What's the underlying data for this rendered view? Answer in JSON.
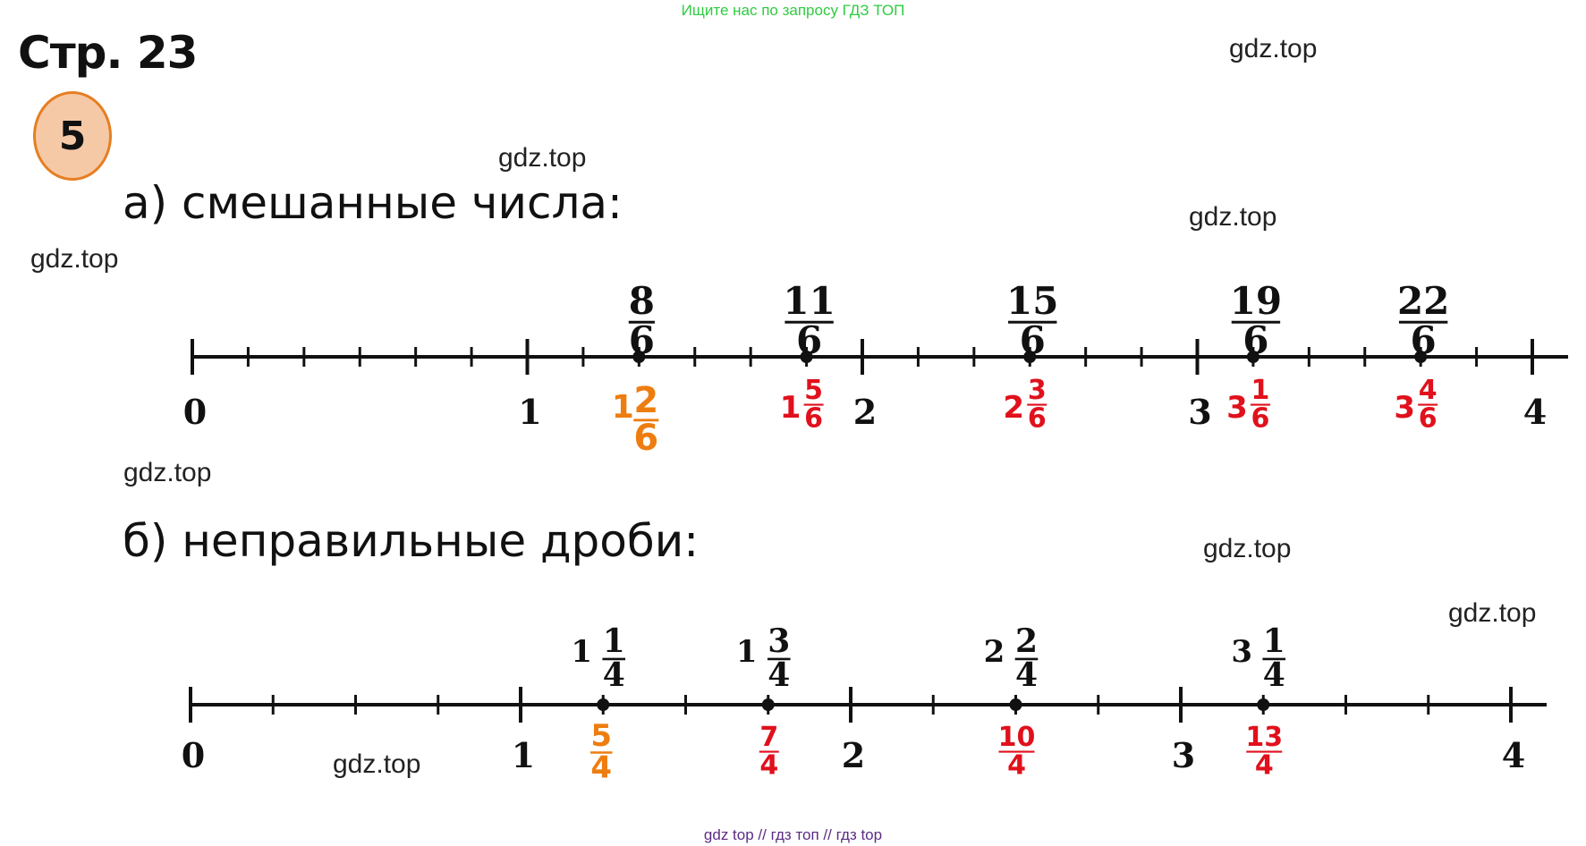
{
  "banner": "Ищите нас по запросу ГДЗ ТОП",
  "page_title": "Стр. 23",
  "task_number": "5",
  "part_a": {
    "heading": "а) смешанные числа:",
    "labels": [
      "0",
      "1",
      "2",
      "3",
      "4"
    ],
    "points": [
      {
        "improper_num": "8",
        "improper_den": "6",
        "whole": "1",
        "num": "2",
        "den": "6",
        "color": "#ee7d10"
      },
      {
        "improper_num": "11",
        "improper_den": "6",
        "whole": "1",
        "num": "5",
        "den": "6",
        "color": "#e0111c"
      },
      {
        "improper_num": "15",
        "improper_den": "6",
        "whole": "2",
        "num": "3",
        "den": "6",
        "color": "#e0111c"
      },
      {
        "improper_num": "19",
        "improper_den": "6",
        "whole": "3",
        "num": "1",
        "den": "6",
        "color": "#e0111c"
      },
      {
        "improper_num": "22",
        "improper_den": "6",
        "whole": "3",
        "num": "4",
        "den": "6",
        "color": "#e0111c"
      }
    ]
  },
  "part_b": {
    "heading": "б) неправильные дроби:",
    "labels": [
      "0",
      "1",
      "2",
      "3",
      "4"
    ],
    "points": [
      {
        "whole": "1",
        "num": "1",
        "den": "4",
        "improper_num": "5",
        "improper_den": "4",
        "color": "#ee7d10"
      },
      {
        "whole": "1",
        "num": "3",
        "den": "4",
        "improper_num": "7",
        "improper_den": "4",
        "color": "#e0111c"
      },
      {
        "whole": "2",
        "num": "2",
        "den": "4",
        "improper_num": "10",
        "improper_den": "4",
        "color": "#e0111c"
      },
      {
        "whole": "3",
        "num": "1",
        "den": "4",
        "improper_num": "13",
        "improper_den": "4",
        "color": "#e0111c"
      }
    ]
  },
  "watermarks": [
    "gdz.top",
    "gdz.top",
    "gdz.top",
    "gdz.top",
    "gdz.top",
    "gdz.top",
    "gdz.top",
    "gdz.top"
  ],
  "footer": "gdz top  //  гдз топ  //  гдз top",
  "colors": {
    "ink": "#111111",
    "orange": "#ee7d10",
    "red": "#e0111c",
    "banner_green": "#2ecc40",
    "footer_purple": "#5b2c83"
  }
}
